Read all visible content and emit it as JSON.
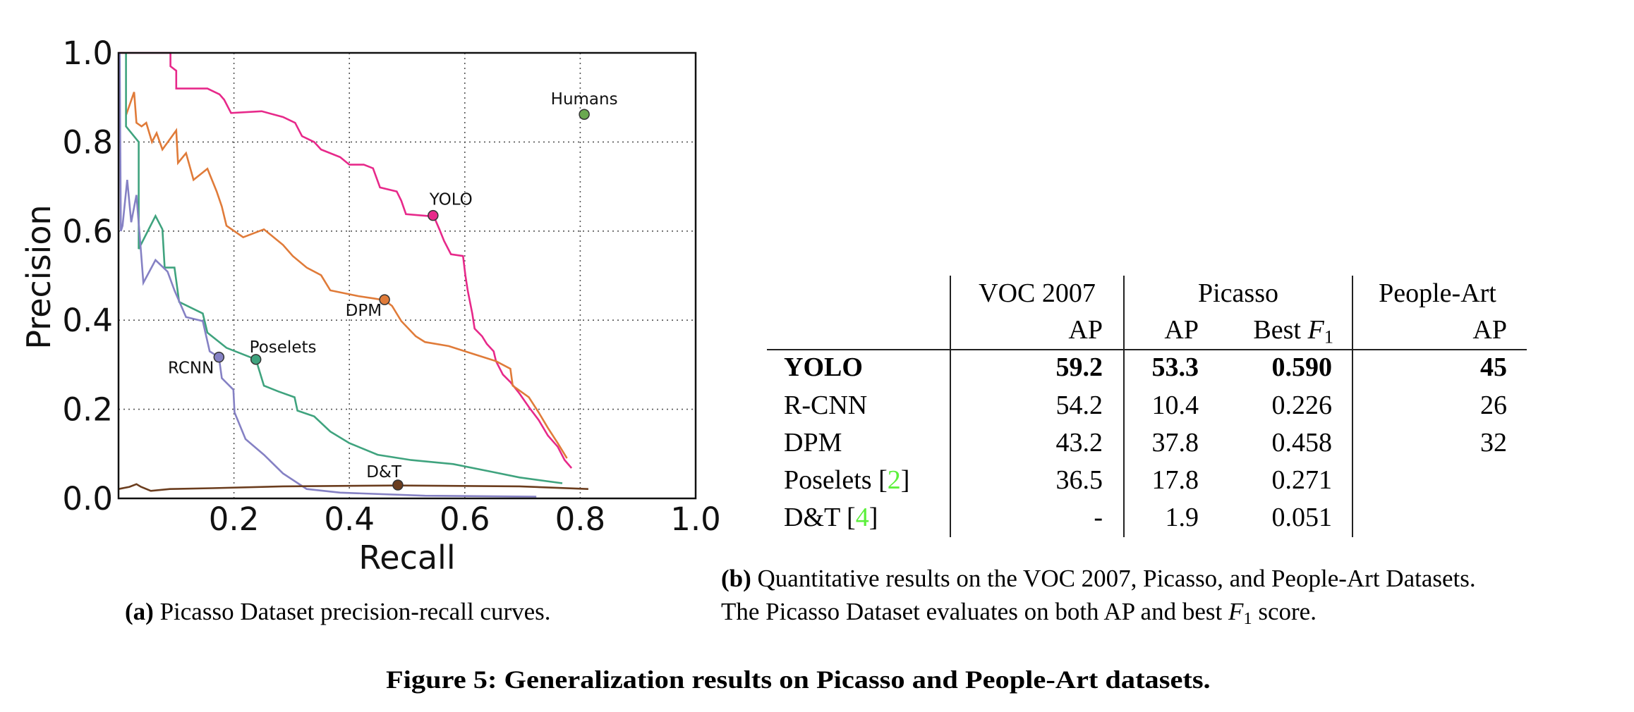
{
  "figure": {
    "title_label": "Figure 5:",
    "title_text": "Generalization results on Picasso and People-Art datasets."
  },
  "caption_a": {
    "tag": "(a)",
    "text": "Picasso Dataset precision-recall curves."
  },
  "caption_b": {
    "tag": "(b)",
    "line1": "Quantitative results on the VOC 2007, Picasso, and People-Art Datasets.",
    "line2_pre": "The Picasso Dataset evaluates on both AP and best ",
    "line2_math": "F",
    "line2_sub": "1",
    "line2_post": " score."
  },
  "table": {
    "group_headers": [
      "VOC 2007",
      "Picasso",
      "People-Art"
    ],
    "sub_headers": {
      "voc_ap": "AP",
      "picasso_ap": "AP",
      "picasso_f1_pre": "Best ",
      "picasso_f1_math": "F",
      "picasso_f1_sub": "1",
      "peopleart_ap": "AP"
    },
    "rows": [
      {
        "name": "YOLO",
        "cite": "",
        "voc_ap": "59.2",
        "picasso_ap": "53.3",
        "picasso_f1": "0.590",
        "peopleart_ap": "45",
        "bold": true
      },
      {
        "name": "R-CNN",
        "cite": "",
        "voc_ap": "54.2",
        "picasso_ap": "10.4",
        "picasso_f1": "0.226",
        "peopleart_ap": "26",
        "bold": false
      },
      {
        "name": "DPM",
        "cite": "",
        "voc_ap": "43.2",
        "picasso_ap": "37.8",
        "picasso_f1": "0.458",
        "peopleart_ap": "32",
        "bold": false
      },
      {
        "name": "Poselets",
        "cite": "2",
        "voc_ap": "36.5",
        "picasso_ap": "17.8",
        "picasso_f1": "0.271",
        "peopleart_ap": "",
        "bold": false
      },
      {
        "name": "D&T",
        "cite": "4",
        "voc_ap": "-",
        "picasso_ap": "1.9",
        "picasso_f1": "0.051",
        "peopleart_ap": "",
        "bold": false
      }
    ],
    "cite_color": "#5cf03c"
  },
  "chart_data": {
    "type": "line",
    "title": "",
    "xlabel": "Recall",
    "ylabel": "Precision",
    "xlim": [
      0,
      1.0
    ],
    "ylim": [
      0,
      1.0
    ],
    "xticks": [
      "0.2",
      "0.4",
      "0.6",
      "0.8",
      "1.0"
    ],
    "xtick_values": [
      0.2,
      0.4,
      0.6,
      0.8,
      1.0
    ],
    "yticks": [
      "0.0",
      "0.2",
      "0.4",
      "0.6",
      "0.8",
      "1.0"
    ],
    "ytick_values": [
      0.0,
      0.2,
      0.4,
      0.6,
      0.8,
      1.0
    ],
    "grid": true,
    "legend": "none (inline point labels)",
    "series": [
      {
        "name": "YOLO",
        "color": "#e7298a",
        "marker": {
          "x": 0.545,
          "y": 0.635,
          "label": "YOLO"
        },
        "points": [
          [
            0.0,
            1.0
          ],
          [
            0.09,
            1.0
          ],
          [
            0.09,
            0.97
          ],
          [
            0.1,
            0.96
          ],
          [
            0.1,
            0.92
          ],
          [
            0.154,
            0.92
          ],
          [
            0.175,
            0.907
          ],
          [
            0.183,
            0.895
          ],
          [
            0.195,
            0.865
          ],
          [
            0.248,
            0.869
          ],
          [
            0.285,
            0.856
          ],
          [
            0.306,
            0.843
          ],
          [
            0.318,
            0.813
          ],
          [
            0.339,
            0.8
          ],
          [
            0.351,
            0.783
          ],
          [
            0.384,
            0.766
          ],
          [
            0.4,
            0.749
          ],
          [
            0.425,
            0.749
          ],
          [
            0.441,
            0.741
          ],
          [
            0.453,
            0.698
          ],
          [
            0.482,
            0.689
          ],
          [
            0.49,
            0.668
          ],
          [
            0.498,
            0.638
          ],
          [
            0.535,
            0.634
          ],
          [
            0.546,
            0.634
          ],
          [
            0.556,
            0.604
          ],
          [
            0.564,
            0.578
          ],
          [
            0.576,
            0.548
          ],
          [
            0.597,
            0.544
          ],
          [
            0.601,
            0.501
          ],
          [
            0.605,
            0.467
          ],
          [
            0.613,
            0.415
          ],
          [
            0.617,
            0.381
          ],
          [
            0.63,
            0.364
          ],
          [
            0.638,
            0.347
          ],
          [
            0.65,
            0.33
          ],
          [
            0.654,
            0.308
          ],
          [
            0.666,
            0.278
          ],
          [
            0.679,
            0.261
          ],
          [
            0.695,
            0.235
          ],
          [
            0.711,
            0.205
          ],
          [
            0.728,
            0.176
          ],
          [
            0.744,
            0.141
          ],
          [
            0.761,
            0.116
          ],
          [
            0.773,
            0.086
          ],
          [
            0.785,
            0.068
          ]
        ]
      },
      {
        "name": "DPM",
        "color": "#e07b39",
        "marker": {
          "x": 0.461,
          "y": 0.446,
          "label": "DPM"
        },
        "points": [
          [
            0.013,
            0.86
          ],
          [
            0.027,
            0.912
          ],
          [
            0.031,
            0.843
          ],
          [
            0.04,
            0.835
          ],
          [
            0.048,
            0.843
          ],
          [
            0.058,
            0.8
          ],
          [
            0.066,
            0.82
          ],
          [
            0.076,
            0.783
          ],
          [
            0.1,
            0.826
          ],
          [
            0.103,
            0.753
          ],
          [
            0.117,
            0.775
          ],
          [
            0.13,
            0.715
          ],
          [
            0.154,
            0.74
          ],
          [
            0.17,
            0.689
          ],
          [
            0.179,
            0.655
          ],
          [
            0.187,
            0.612
          ],
          [
            0.216,
            0.586
          ],
          [
            0.252,
            0.604
          ],
          [
            0.285,
            0.569
          ],
          [
            0.302,
            0.544
          ],
          [
            0.326,
            0.518
          ],
          [
            0.351,
            0.501
          ],
          [
            0.367,
            0.467
          ],
          [
            0.416,
            0.454
          ],
          [
            0.441,
            0.449
          ],
          [
            0.461,
            0.445
          ],
          [
            0.474,
            0.432
          ],
          [
            0.49,
            0.398
          ],
          [
            0.515,
            0.364
          ],
          [
            0.531,
            0.351
          ],
          [
            0.572,
            0.342
          ],
          [
            0.613,
            0.325
          ],
          [
            0.654,
            0.308
          ],
          [
            0.679,
            0.291
          ],
          [
            0.683,
            0.253
          ],
          [
            0.711,
            0.227
          ],
          [
            0.728,
            0.193
          ],
          [
            0.744,
            0.158
          ],
          [
            0.761,
            0.124
          ],
          [
            0.777,
            0.09
          ]
        ]
      },
      {
        "name": "Poselets",
        "color": "#3fa37e",
        "marker": {
          "x": 0.238,
          "y": 0.312,
          "label": "Poselets"
        },
        "points": [
          [
            0.013,
            1.0
          ],
          [
            0.013,
            0.835
          ],
          [
            0.035,
            0.8
          ],
          [
            0.035,
            0.56
          ],
          [
            0.064,
            0.634
          ],
          [
            0.076,
            0.604
          ],
          [
            0.08,
            0.518
          ],
          [
            0.097,
            0.518
          ],
          [
            0.105,
            0.441
          ],
          [
            0.146,
            0.415
          ],
          [
            0.154,
            0.372
          ],
          [
            0.187,
            0.338
          ],
          [
            0.22,
            0.321
          ],
          [
            0.238,
            0.312
          ],
          [
            0.252,
            0.253
          ],
          [
            0.277,
            0.24
          ],
          [
            0.305,
            0.227
          ],
          [
            0.31,
            0.197
          ],
          [
            0.339,
            0.184
          ],
          [
            0.367,
            0.15
          ],
          [
            0.4,
            0.124
          ],
          [
            0.449,
            0.098
          ],
          [
            0.507,
            0.086
          ],
          [
            0.58,
            0.077
          ],
          [
            0.646,
            0.06
          ],
          [
            0.695,
            0.047
          ],
          [
            0.769,
            0.034
          ]
        ]
      },
      {
        "name": "RCNN",
        "color": "#8581c4",
        "marker": {
          "x": 0.174,
          "y": 0.317,
          "label": "RCNN"
        },
        "points": [
          [
            0.002,
            1.0
          ],
          [
            0.004,
            0.6
          ],
          [
            0.007,
            0.612
          ],
          [
            0.015,
            0.715
          ],
          [
            0.022,
            0.62
          ],
          [
            0.031,
            0.681
          ],
          [
            0.039,
            0.552
          ],
          [
            0.043,
            0.484
          ],
          [
            0.064,
            0.535
          ],
          [
            0.085,
            0.509
          ],
          [
            0.097,
            0.467
          ],
          [
            0.117,
            0.407
          ],
          [
            0.146,
            0.398
          ],
          [
            0.158,
            0.33
          ],
          [
            0.174,
            0.317
          ],
          [
            0.179,
            0.27
          ],
          [
            0.199,
            0.244
          ],
          [
            0.201,
            0.193
          ],
          [
            0.22,
            0.133
          ],
          [
            0.252,
            0.098
          ],
          [
            0.285,
            0.056
          ],
          [
            0.326,
            0.021
          ],
          [
            0.384,
            0.013
          ],
          [
            0.531,
            0.006
          ],
          [
            0.724,
            0.004
          ]
        ]
      },
      {
        "name": "D&T",
        "color": "#6b3d1e",
        "marker": {
          "x": 0.484,
          "y": 0.03,
          "label": "D&T"
        },
        "points": [
          [
            0.0,
            0.021
          ],
          [
            0.019,
            0.026
          ],
          [
            0.031,
            0.032
          ],
          [
            0.039,
            0.026
          ],
          [
            0.056,
            0.017
          ],
          [
            0.089,
            0.021
          ],
          [
            0.162,
            0.023
          ],
          [
            0.285,
            0.027
          ],
          [
            0.484,
            0.029
          ],
          [
            0.695,
            0.027
          ],
          [
            0.814,
            0.021
          ]
        ]
      },
      {
        "name": "Humans",
        "color": "#6aa84f",
        "marker": {
          "x": 0.807,
          "y": 0.862,
          "label": "Humans"
        },
        "points": []
      }
    ]
  }
}
